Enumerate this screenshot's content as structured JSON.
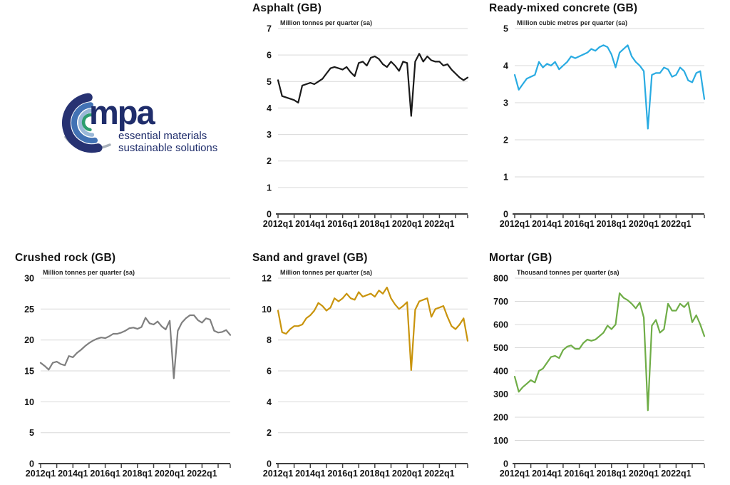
{
  "logo": {
    "brand": "mpa",
    "tagline_line1": "essential materials",
    "tagline_line2": "sustainable solutions",
    "colors": {
      "navy": "#273272",
      "blue": "#4272b4",
      "lightblue": "#9ab8d8",
      "green": "#2d9e6f",
      "gray": "#a8b0b9",
      "text": "#1f2d6b"
    }
  },
  "axis": {
    "x_start": "2012q1",
    "x_end": "2023q4",
    "frequency": "quarterly",
    "x_tick_labels": [
      "2012q1",
      "2014q1",
      "2016q1",
      "2018q1",
      "2020q1",
      "2022q1"
    ],
    "label_every_quarters": 8,
    "tick_every_quarters": 4
  },
  "chart_data": [
    {
      "id": "asphalt",
      "type": "line",
      "title": "Asphalt (GB)",
      "unit": "Million tonnes per quarter (sa)",
      "color": "#1a1a1a",
      "ylim": [
        0,
        7
      ],
      "y_step": 1,
      "grid": true,
      "legend": "none",
      "values": [
        5.05,
        4.45,
        4.4,
        4.35,
        4.3,
        4.2,
        4.85,
        4.9,
        4.95,
        4.9,
        5.0,
        5.1,
        5.3,
        5.5,
        5.55,
        5.5,
        5.45,
        5.55,
        5.35,
        5.2,
        5.7,
        5.75,
        5.6,
        5.9,
        5.95,
        5.85,
        5.65,
        5.55,
        5.75,
        5.6,
        5.4,
        5.75,
        5.7,
        3.7,
        5.75,
        6.05,
        5.75,
        5.95,
        5.8,
        5.75,
        5.75,
        5.6,
        5.65,
        5.45,
        5.3,
        5.15,
        5.05,
        5.15
      ]
    },
    {
      "id": "ready-mixed-concrete",
      "type": "line",
      "title": "Ready-mixed concrete (GB)",
      "unit": "Million cubic metres per quarter (sa)",
      "color": "#29abe2",
      "ylim": [
        0,
        5
      ],
      "y_step": 1,
      "grid": true,
      "legend": "none",
      "values": [
        3.75,
        3.35,
        3.5,
        3.65,
        3.7,
        3.75,
        4.1,
        3.95,
        4.05,
        4.0,
        4.1,
        3.9,
        4.0,
        4.1,
        4.25,
        4.2,
        4.25,
        4.3,
        4.35,
        4.45,
        4.4,
        4.5,
        4.55,
        4.5,
        4.3,
        3.95,
        4.35,
        4.45,
        4.55,
        4.25,
        4.1,
        4.0,
        3.85,
        2.3,
        3.75,
        3.8,
        3.8,
        3.95,
        3.9,
        3.7,
        3.75,
        3.95,
        3.85,
        3.6,
        3.55,
        3.8,
        3.85,
        3.1
      ]
    },
    {
      "id": "crushed-rock",
      "type": "line",
      "title": "Crushed rock (GB)",
      "unit": "Million tonnes per quarter (sa)",
      "color": "#7f7f7f",
      "ylim": [
        0,
        30
      ],
      "y_step": 5,
      "grid": true,
      "legend": "none",
      "values": [
        16.3,
        15.8,
        15.2,
        16.3,
        16.5,
        16.1,
        15.9,
        17.4,
        17.2,
        17.9,
        18.4,
        19.0,
        19.5,
        19.9,
        20.2,
        20.4,
        20.3,
        20.6,
        21.0,
        21.0,
        21.2,
        21.5,
        21.9,
        22.0,
        21.8,
        22.1,
        23.6,
        22.7,
        22.5,
        23.0,
        22.2,
        21.7,
        23.1,
        13.8,
        21.5,
        22.8,
        23.5,
        24.0,
        24.0,
        23.2,
        22.8,
        23.5,
        23.3,
        21.5,
        21.2,
        21.3,
        21.6,
        20.8
      ]
    },
    {
      "id": "sand-and-gravel",
      "type": "line",
      "title": "Sand and gravel (GB)",
      "unit": "Million tonnes per quarter (sa)",
      "color": "#c9940d",
      "ylim": [
        0,
        12
      ],
      "y_step": 2,
      "grid": true,
      "legend": "none",
      "values": [
        9.9,
        8.5,
        8.4,
        8.7,
        8.9,
        8.9,
        9.0,
        9.4,
        9.6,
        9.9,
        10.4,
        10.2,
        9.9,
        10.1,
        10.7,
        10.5,
        10.7,
        11.0,
        10.7,
        10.6,
        11.1,
        10.8,
        10.9,
        11.0,
        10.8,
        11.2,
        11.0,
        11.4,
        10.7,
        10.3,
        10.0,
        10.2,
        10.45,
        6.05,
        9.95,
        10.5,
        10.6,
        10.7,
        9.5,
        10.0,
        10.1,
        10.2,
        9.5,
        8.9,
        8.7,
        9.0,
        9.4,
        7.95
      ]
    },
    {
      "id": "mortar",
      "type": "line",
      "title": "Mortar (GB)",
      "unit": "Thousand tonnes per quarter (sa)",
      "color": "#6fad47",
      "ylim": [
        0,
        800
      ],
      "y_step": 100,
      "grid": true,
      "legend": "none",
      "values": [
        375,
        310,
        330,
        345,
        360,
        350,
        400,
        410,
        435,
        460,
        465,
        455,
        490,
        505,
        510,
        495,
        495,
        520,
        535,
        530,
        535,
        550,
        565,
        595,
        580,
        600,
        735,
        715,
        705,
        690,
        670,
        695,
        630,
        230,
        595,
        620,
        565,
        580,
        690,
        660,
        660,
        690,
        675,
        695,
        610,
        640,
        600,
        550
      ]
    }
  ]
}
